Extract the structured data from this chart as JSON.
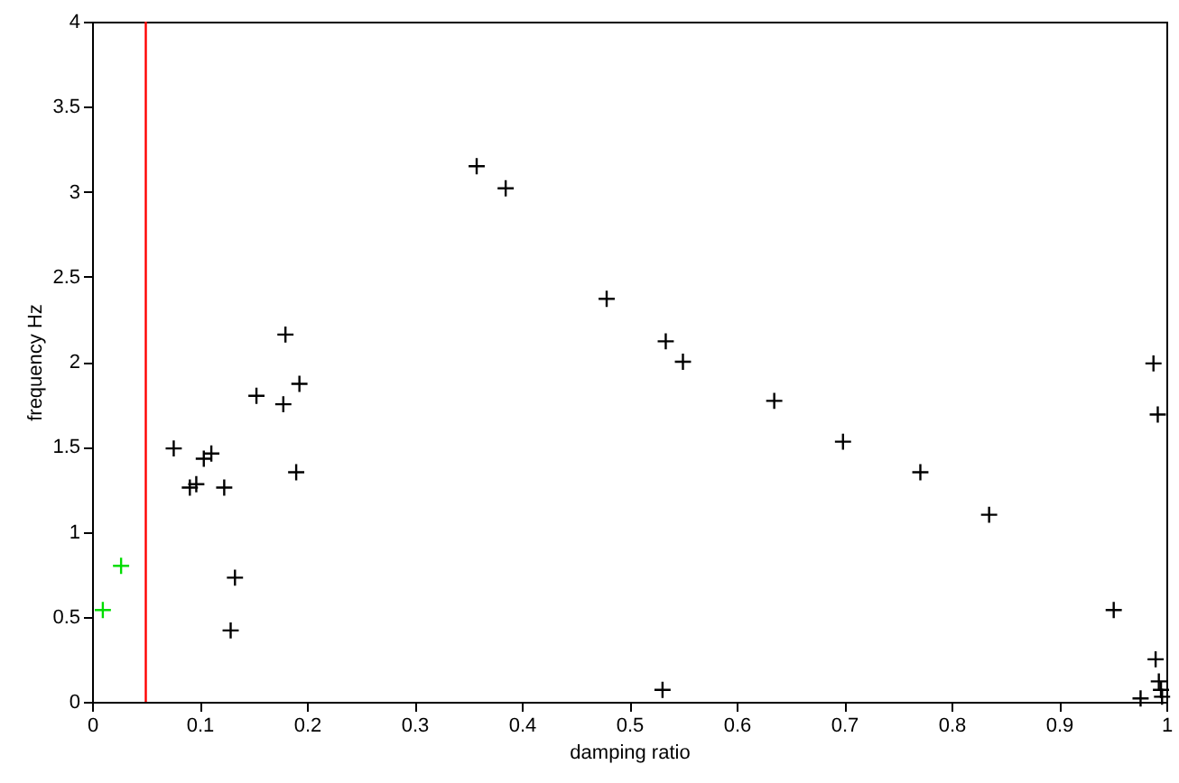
{
  "chart_data": {
    "type": "scatter",
    "xlabel": "damping ratio",
    "ylabel": "frequency Hz",
    "xlim": [
      0,
      1
    ],
    "ylim": [
      0,
      4
    ],
    "xticks": [
      0,
      0.1,
      0.2,
      0.3,
      0.4,
      0.5,
      0.6,
      0.7,
      0.8,
      0.9,
      1
    ],
    "yticks": [
      0,
      0.5,
      1,
      1.5,
      2,
      2.5,
      3,
      3.5,
      4
    ],
    "grid": false,
    "legend": false,
    "marker": "cross",
    "series": [
      {
        "color": "#000000",
        "x": [
          0.076,
          0.091,
          0.097,
          0.104,
          0.111,
          0.123,
          0.133,
          0.129,
          0.153,
          0.18,
          0.178,
          0.193,
          0.19,
          0.358,
          0.385,
          0.479,
          0.534,
          0.55,
          0.531,
          0.635,
          0.699,
          0.771,
          0.835,
          0.951,
          0.988,
          0.992,
          0.99,
          0.976,
          0.993,
          0.995,
          0.996
        ],
        "values": [
          1.49,
          1.26,
          1.28,
          1.43,
          1.46,
          1.26,
          0.73,
          0.42,
          1.8,
          2.16,
          1.75,
          1.87,
          1.35,
          3.15,
          3.02,
          2.37,
          2.12,
          2.0,
          0.07,
          1.77,
          1.53,
          1.35,
          1.1,
          0.54,
          1.99,
          1.69,
          0.25,
          0.02,
          0.12,
          0.07,
          0.03
        ]
      },
      {
        "color": "#00dd00",
        "x": [
          0.01,
          0.027
        ],
        "values": [
          0.54,
          0.8
        ]
      }
    ],
    "ref_lines": [
      {
        "axis": "x",
        "value": 0.05,
        "color": "#ff0000"
      }
    ]
  }
}
